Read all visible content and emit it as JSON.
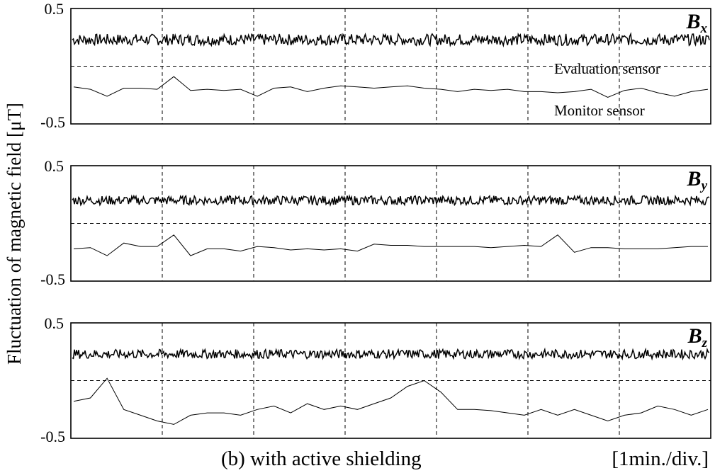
{
  "chart_data": {
    "type": "line",
    "ylabel": "Fluctuation of magnetic field [μT]",
    "xlabel": "(b) with active shielding",
    "xunit": "[1min./div.]",
    "x_divisions": 7,
    "panels": [
      {
        "component": "B",
        "subscript": "x",
        "ylim": [
          -0.5,
          0.5
        ],
        "ytick_labels": [
          "0.5",
          "-0.5"
        ],
        "annotations": [
          "Evaluation sensor",
          "Monitor sensor"
        ],
        "series": [
          {
            "level": 0.23,
            "noise": 0.05
          },
          {
            "values": [
              -0.18,
              -0.2,
              -0.26,
              -0.19,
              -0.19,
              -0.2,
              -0.09,
              -0.21,
              -0.2,
              -0.21,
              -0.2,
              -0.26,
              -0.19,
              -0.18,
              -0.22,
              -0.19,
              -0.17,
              -0.18,
              -0.19,
              -0.18,
              -0.17,
              -0.19,
              -0.2,
              -0.22,
              -0.2,
              -0.21,
              -0.2,
              -0.22,
              -0.22,
              -0.23,
              -0.22,
              -0.2,
              -0.27,
              -0.21,
              -0.19,
              -0.23,
              -0.26,
              -0.22,
              -0.2
            ]
          }
        ]
      },
      {
        "component": "B",
        "subscript": "y",
        "ylim": [
          -0.5,
          0.5
        ],
        "ytick_labels": [
          "0.5",
          "-0.5"
        ],
        "series": [
          {
            "level": 0.2,
            "noise": 0.04
          },
          {
            "values": [
              -0.22,
              -0.21,
              -0.28,
              -0.17,
              -0.2,
              -0.2,
              -0.1,
              -0.28,
              -0.22,
              -0.22,
              -0.24,
              -0.2,
              -0.21,
              -0.23,
              -0.22,
              -0.23,
              -0.22,
              -0.24,
              -0.18,
              -0.19,
              -0.19,
              -0.2,
              -0.2,
              -0.2,
              -0.2,
              -0.21,
              -0.2,
              -0.19,
              -0.2,
              -0.1,
              -0.25,
              -0.21,
              -0.21,
              -0.22,
              -0.22,
              -0.22,
              -0.21,
              -0.2,
              -0.2
            ]
          }
        ]
      },
      {
        "component": "B",
        "subscript": "z",
        "ylim": [
          -0.5,
          0.5
        ],
        "ytick_labels": [
          "0.5",
          "-0.5"
        ],
        "series": [
          {
            "level": 0.23,
            "noise": 0.04
          },
          {
            "values": [
              -0.18,
              -0.15,
              0.02,
              -0.25,
              -0.3,
              -0.35,
              -0.38,
              -0.3,
              -0.28,
              -0.28,
              -0.3,
              -0.25,
              -0.22,
              -0.28,
              -0.2,
              -0.25,
              -0.22,
              -0.25,
              -0.2,
              -0.15,
              -0.05,
              0,
              -0.1,
              -0.25,
              -0.25,
              -0.26,
              -0.28,
              -0.3,
              -0.25,
              -0.3,
              -0.25,
              -0.3,
              -0.35,
              -0.3,
              -0.28,
              -0.22,
              -0.25,
              -0.3,
              -0.25
            ]
          }
        ]
      }
    ]
  }
}
